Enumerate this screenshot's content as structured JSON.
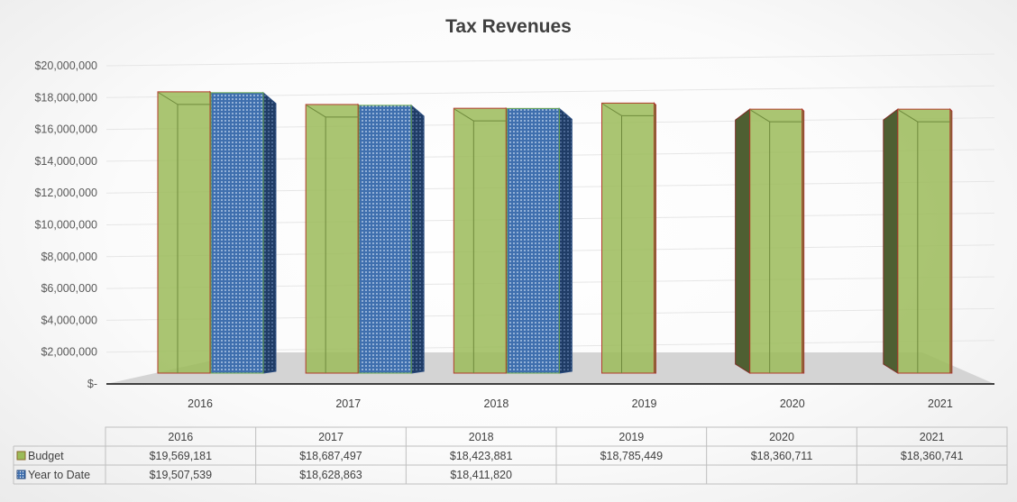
{
  "chart_data": {
    "type": "bar",
    "title": "Tax Revenues",
    "categories": [
      "2016",
      "2017",
      "2018",
      "2019",
      "2020",
      "2021"
    ],
    "series": [
      {
        "name": "Budget",
        "values": [
          19569181,
          18687497,
          18423881,
          18785449,
          18360711,
          18360741
        ],
        "display": [
          "$19,569,181",
          "$18,687,497",
          "$18,423,881",
          "$18,785,449",
          "$18,360,711",
          "$18,360,741"
        ],
        "color": "#9BBB59"
      },
      {
        "name": "Year to Date",
        "values": [
          19507539,
          18628863,
          18411820,
          null,
          null,
          null
        ],
        "display": [
          "$19,507,539",
          "$18,628,863",
          "$18,411,820",
          "",
          "",
          ""
        ],
        "color": "#4F81BD"
      }
    ],
    "yticks": [
      "$-",
      "$2,000,000",
      "$4,000,000",
      "$6,000,000",
      "$8,000,000",
      "$10,000,000",
      "$12,000,000",
      "$14,000,000",
      "$16,000,000",
      "$18,000,000",
      "$20,000,000"
    ],
    "ylim": [
      0,
      20000000
    ],
    "grid": true,
    "legend": "data-table",
    "style": "3d-column"
  }
}
